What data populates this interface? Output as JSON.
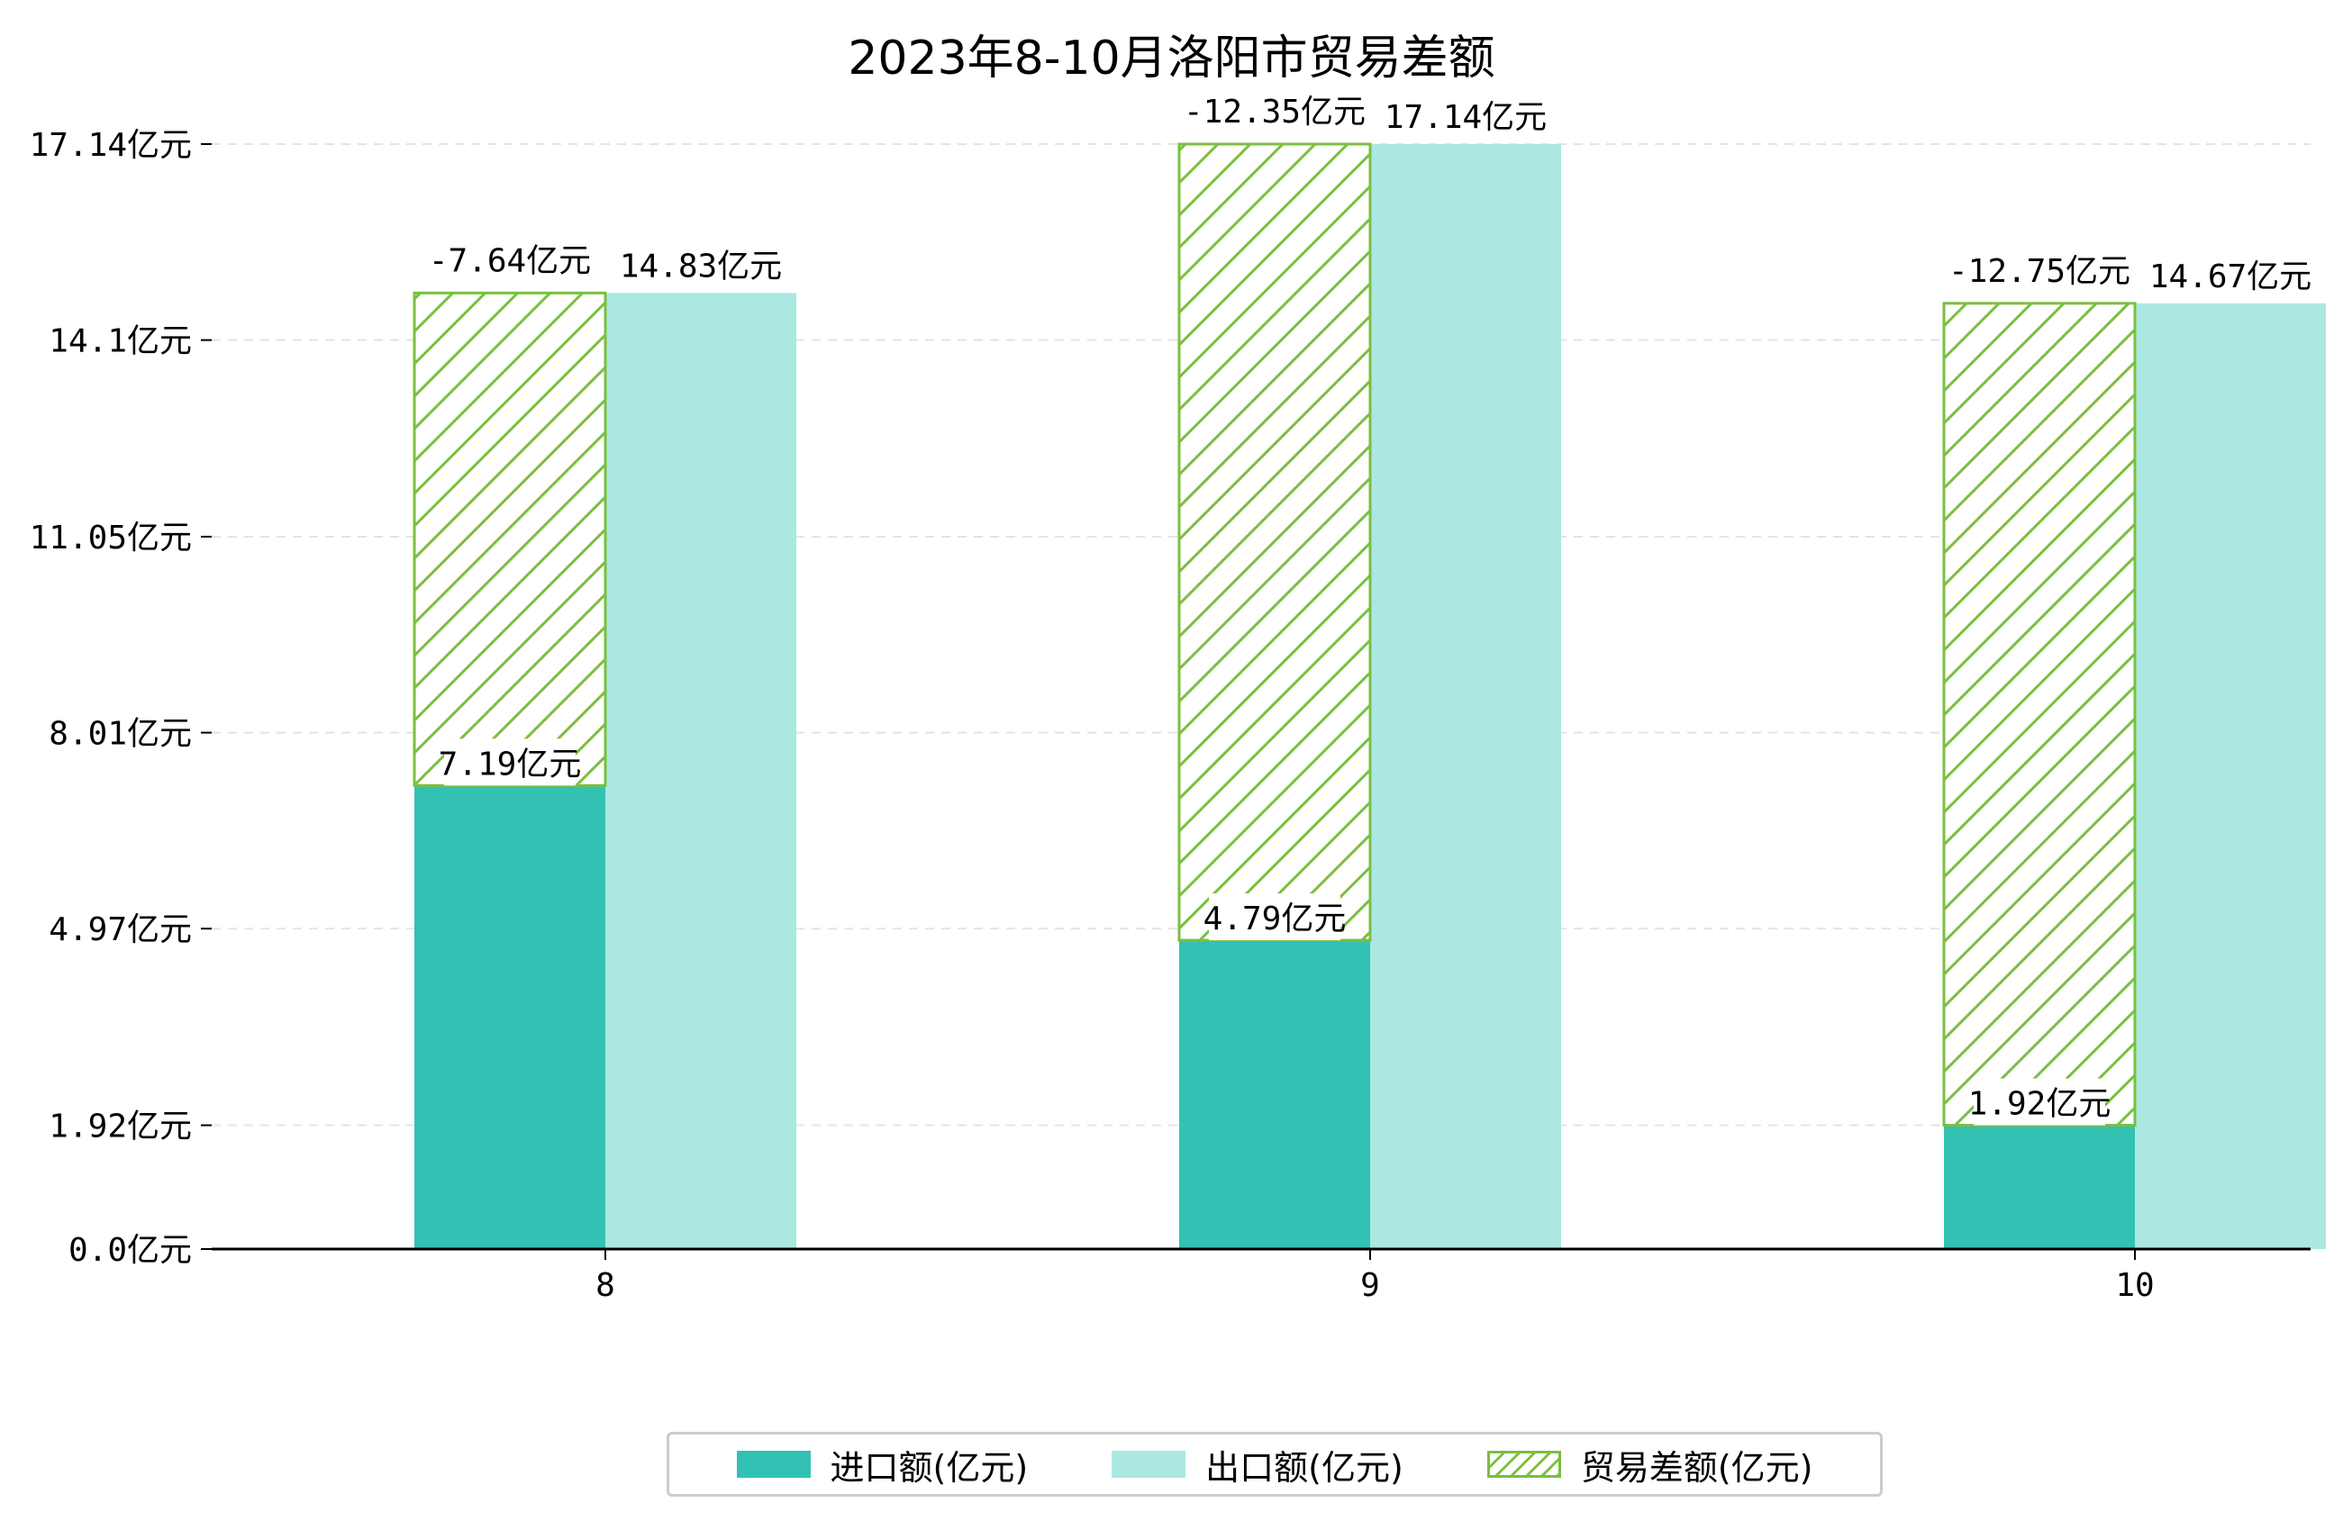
{
  "chart_data": {
    "type": "bar",
    "title": "2023年8-10月洛阳市贸易差额",
    "categories": [
      "8",
      "9",
      "10"
    ],
    "series": [
      {
        "name": "进口额(亿元)",
        "values": [
          7.19,
          4.79,
          1.92
        ],
        "labels": [
          "7.19亿元",
          "4.79亿元",
          "1.92亿元"
        ],
        "color": "#33c1b4"
      },
      {
        "name": "出口额(亿元)",
        "values": [
          14.83,
          17.14,
          14.67
        ],
        "labels": [
          "14.83亿元",
          "17.14亿元",
          "14.67亿元"
        ],
        "color": "#abe8e2"
      },
      {
        "name": "贸易差额(亿元)",
        "values": [
          -7.64,
          -12.35,
          -12.75
        ],
        "labels": [
          "-7.64亿元",
          "-12.35亿元",
          "-12.75亿元"
        ],
        "color": "#7bbf3f"
      }
    ],
    "y_ticks": [
      0.0,
      1.92,
      4.97,
      8.01,
      11.05,
      14.1,
      17.14
    ],
    "y_tick_labels": [
      "0.0亿元",
      "1.92亿元",
      "4.97亿元",
      "8.01亿元",
      "11.05亿元",
      "14.1亿元",
      "17.14亿元"
    ],
    "ylim": [
      0,
      17.14
    ],
    "grid": true,
    "legend_position": "bottom-center"
  }
}
